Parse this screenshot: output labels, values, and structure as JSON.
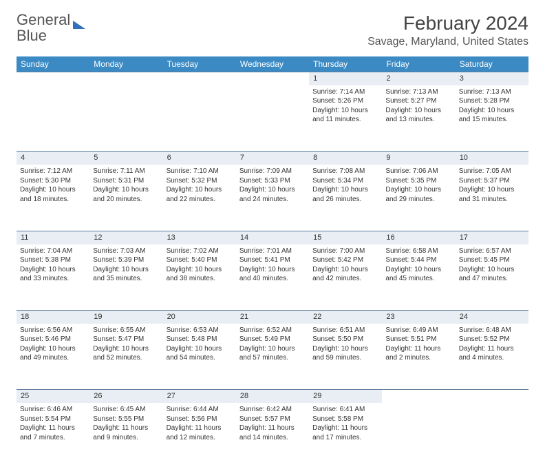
{
  "logo": {
    "word1": "General",
    "word2": "Blue"
  },
  "title": "February 2024",
  "location": "Savage, Maryland, United States",
  "colors": {
    "header_bg": "#3b8ac4",
    "header_text": "#ffffff",
    "daynum_bg": "#e8eef3",
    "daynum_border": "#5a7a9a",
    "body_text": "#333333",
    "logo_gray": "#555555",
    "logo_blue": "#2f72b9"
  },
  "weekdays": [
    "Sunday",
    "Monday",
    "Tuesday",
    "Wednesday",
    "Thursday",
    "Friday",
    "Saturday"
  ],
  "weeks": [
    {
      "nums": [
        "",
        "",
        "",
        "",
        "1",
        "2",
        "3"
      ],
      "cells": [
        null,
        null,
        null,
        null,
        {
          "sunrise": "Sunrise: 7:14 AM",
          "sunset": "Sunset: 5:26 PM",
          "daylight": "Daylight: 10 hours and 11 minutes."
        },
        {
          "sunrise": "Sunrise: 7:13 AM",
          "sunset": "Sunset: 5:27 PM",
          "daylight": "Daylight: 10 hours and 13 minutes."
        },
        {
          "sunrise": "Sunrise: 7:13 AM",
          "sunset": "Sunset: 5:28 PM",
          "daylight": "Daylight: 10 hours and 15 minutes."
        }
      ]
    },
    {
      "nums": [
        "4",
        "5",
        "6",
        "7",
        "8",
        "9",
        "10"
      ],
      "cells": [
        {
          "sunrise": "Sunrise: 7:12 AM",
          "sunset": "Sunset: 5:30 PM",
          "daylight": "Daylight: 10 hours and 18 minutes."
        },
        {
          "sunrise": "Sunrise: 7:11 AM",
          "sunset": "Sunset: 5:31 PM",
          "daylight": "Daylight: 10 hours and 20 minutes."
        },
        {
          "sunrise": "Sunrise: 7:10 AM",
          "sunset": "Sunset: 5:32 PM",
          "daylight": "Daylight: 10 hours and 22 minutes."
        },
        {
          "sunrise": "Sunrise: 7:09 AM",
          "sunset": "Sunset: 5:33 PM",
          "daylight": "Daylight: 10 hours and 24 minutes."
        },
        {
          "sunrise": "Sunrise: 7:08 AM",
          "sunset": "Sunset: 5:34 PM",
          "daylight": "Daylight: 10 hours and 26 minutes."
        },
        {
          "sunrise": "Sunrise: 7:06 AM",
          "sunset": "Sunset: 5:35 PM",
          "daylight": "Daylight: 10 hours and 29 minutes."
        },
        {
          "sunrise": "Sunrise: 7:05 AM",
          "sunset": "Sunset: 5:37 PM",
          "daylight": "Daylight: 10 hours and 31 minutes."
        }
      ]
    },
    {
      "nums": [
        "11",
        "12",
        "13",
        "14",
        "15",
        "16",
        "17"
      ],
      "cells": [
        {
          "sunrise": "Sunrise: 7:04 AM",
          "sunset": "Sunset: 5:38 PM",
          "daylight": "Daylight: 10 hours and 33 minutes."
        },
        {
          "sunrise": "Sunrise: 7:03 AM",
          "sunset": "Sunset: 5:39 PM",
          "daylight": "Daylight: 10 hours and 35 minutes."
        },
        {
          "sunrise": "Sunrise: 7:02 AM",
          "sunset": "Sunset: 5:40 PM",
          "daylight": "Daylight: 10 hours and 38 minutes."
        },
        {
          "sunrise": "Sunrise: 7:01 AM",
          "sunset": "Sunset: 5:41 PM",
          "daylight": "Daylight: 10 hours and 40 minutes."
        },
        {
          "sunrise": "Sunrise: 7:00 AM",
          "sunset": "Sunset: 5:42 PM",
          "daylight": "Daylight: 10 hours and 42 minutes."
        },
        {
          "sunrise": "Sunrise: 6:58 AM",
          "sunset": "Sunset: 5:44 PM",
          "daylight": "Daylight: 10 hours and 45 minutes."
        },
        {
          "sunrise": "Sunrise: 6:57 AM",
          "sunset": "Sunset: 5:45 PM",
          "daylight": "Daylight: 10 hours and 47 minutes."
        }
      ]
    },
    {
      "nums": [
        "18",
        "19",
        "20",
        "21",
        "22",
        "23",
        "24"
      ],
      "cells": [
        {
          "sunrise": "Sunrise: 6:56 AM",
          "sunset": "Sunset: 5:46 PM",
          "daylight": "Daylight: 10 hours and 49 minutes."
        },
        {
          "sunrise": "Sunrise: 6:55 AM",
          "sunset": "Sunset: 5:47 PM",
          "daylight": "Daylight: 10 hours and 52 minutes."
        },
        {
          "sunrise": "Sunrise: 6:53 AM",
          "sunset": "Sunset: 5:48 PM",
          "daylight": "Daylight: 10 hours and 54 minutes."
        },
        {
          "sunrise": "Sunrise: 6:52 AM",
          "sunset": "Sunset: 5:49 PM",
          "daylight": "Daylight: 10 hours and 57 minutes."
        },
        {
          "sunrise": "Sunrise: 6:51 AM",
          "sunset": "Sunset: 5:50 PM",
          "daylight": "Daylight: 10 hours and 59 minutes."
        },
        {
          "sunrise": "Sunrise: 6:49 AM",
          "sunset": "Sunset: 5:51 PM",
          "daylight": "Daylight: 11 hours and 2 minutes."
        },
        {
          "sunrise": "Sunrise: 6:48 AM",
          "sunset": "Sunset: 5:52 PM",
          "daylight": "Daylight: 11 hours and 4 minutes."
        }
      ]
    },
    {
      "nums": [
        "25",
        "26",
        "27",
        "28",
        "29",
        "",
        ""
      ],
      "cells": [
        {
          "sunrise": "Sunrise: 6:46 AM",
          "sunset": "Sunset: 5:54 PM",
          "daylight": "Daylight: 11 hours and 7 minutes."
        },
        {
          "sunrise": "Sunrise: 6:45 AM",
          "sunset": "Sunset: 5:55 PM",
          "daylight": "Daylight: 11 hours and 9 minutes."
        },
        {
          "sunrise": "Sunrise: 6:44 AM",
          "sunset": "Sunset: 5:56 PM",
          "daylight": "Daylight: 11 hours and 12 minutes."
        },
        {
          "sunrise": "Sunrise: 6:42 AM",
          "sunset": "Sunset: 5:57 PM",
          "daylight": "Daylight: 11 hours and 14 minutes."
        },
        {
          "sunrise": "Sunrise: 6:41 AM",
          "sunset": "Sunset: 5:58 PM",
          "daylight": "Daylight: 11 hours and 17 minutes."
        },
        null,
        null
      ]
    }
  ]
}
